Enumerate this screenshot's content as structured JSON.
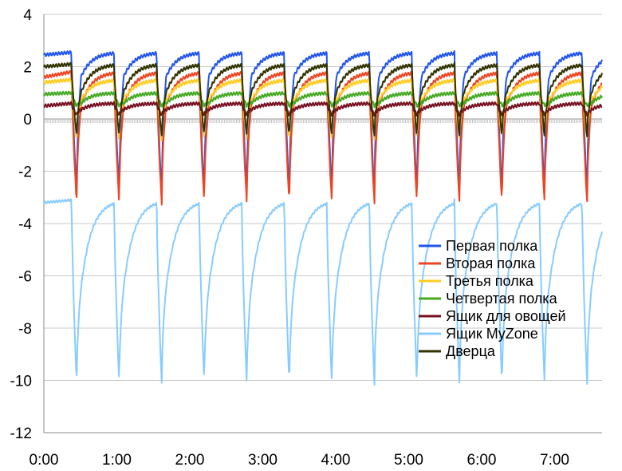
{
  "chart_data": {
    "type": "line",
    "title": "",
    "xlabel": "",
    "ylabel": "",
    "xlim": [
      0,
      7.65
    ],
    "ylim": [
      -12,
      4
    ],
    "x_tick_labels": [
      "0:00",
      "1:00",
      "2:00",
      "3:00",
      "4:00",
      "5:00",
      "6:00",
      "7:00"
    ],
    "y_tick_labels": [
      "4",
      "2",
      "0",
      "-2",
      "-4",
      "-6",
      "-8",
      "-10",
      "-12"
    ],
    "grid": "horizontal",
    "legend_position": "lower-right",
    "cycle_hours": 0.583,
    "series": [
      {
        "name": "Первая полка",
        "color": "#2255ee",
        "pre": 2.45,
        "peak": 2.55,
        "min": -2.9,
        "base": 1.6
      },
      {
        "name": "Вторая полка",
        "color": "#ee4422",
        "pre": 1.6,
        "peak": 1.8,
        "min": -3.3,
        "base": 0.5
      },
      {
        "name": "Третья полка",
        "color": "#ffcc22",
        "pre": 1.4,
        "peak": 1.5,
        "min": -0.8,
        "base": 0.7
      },
      {
        "name": "Четвертая полка",
        "color": "#44aa22",
        "pre": 0.95,
        "peak": 1.0,
        "min": 0.5,
        "base": 0.6
      },
      {
        "name": "Ящик для овощей",
        "color": "#771122",
        "pre": 0.5,
        "peak": 0.6,
        "min": 0.15,
        "base": 0.35
      },
      {
        "name": "Ящик MyZone",
        "color": "#88ccff",
        "pre": -3.2,
        "peak": -3.1,
        "min": -10.2,
        "base": -6.5
      },
      {
        "name": "Дверца",
        "color": "#333300",
        "pre": 2.0,
        "peak": 2.1,
        "min": -0.7,
        "base": 1.0
      }
    ]
  }
}
